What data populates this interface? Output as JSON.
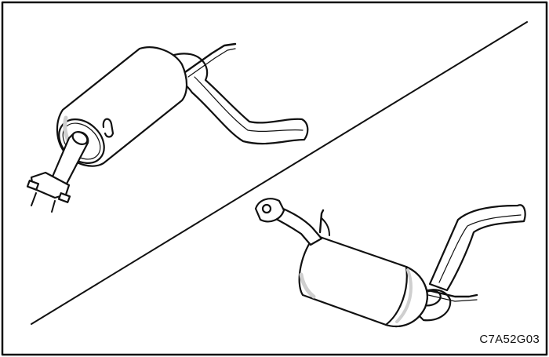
{
  "figure_code": "C7A52G03",
  "colors": {
    "ink": "#111111",
    "paper": "#ffffff",
    "shade": "#cfcfcf"
  }
}
